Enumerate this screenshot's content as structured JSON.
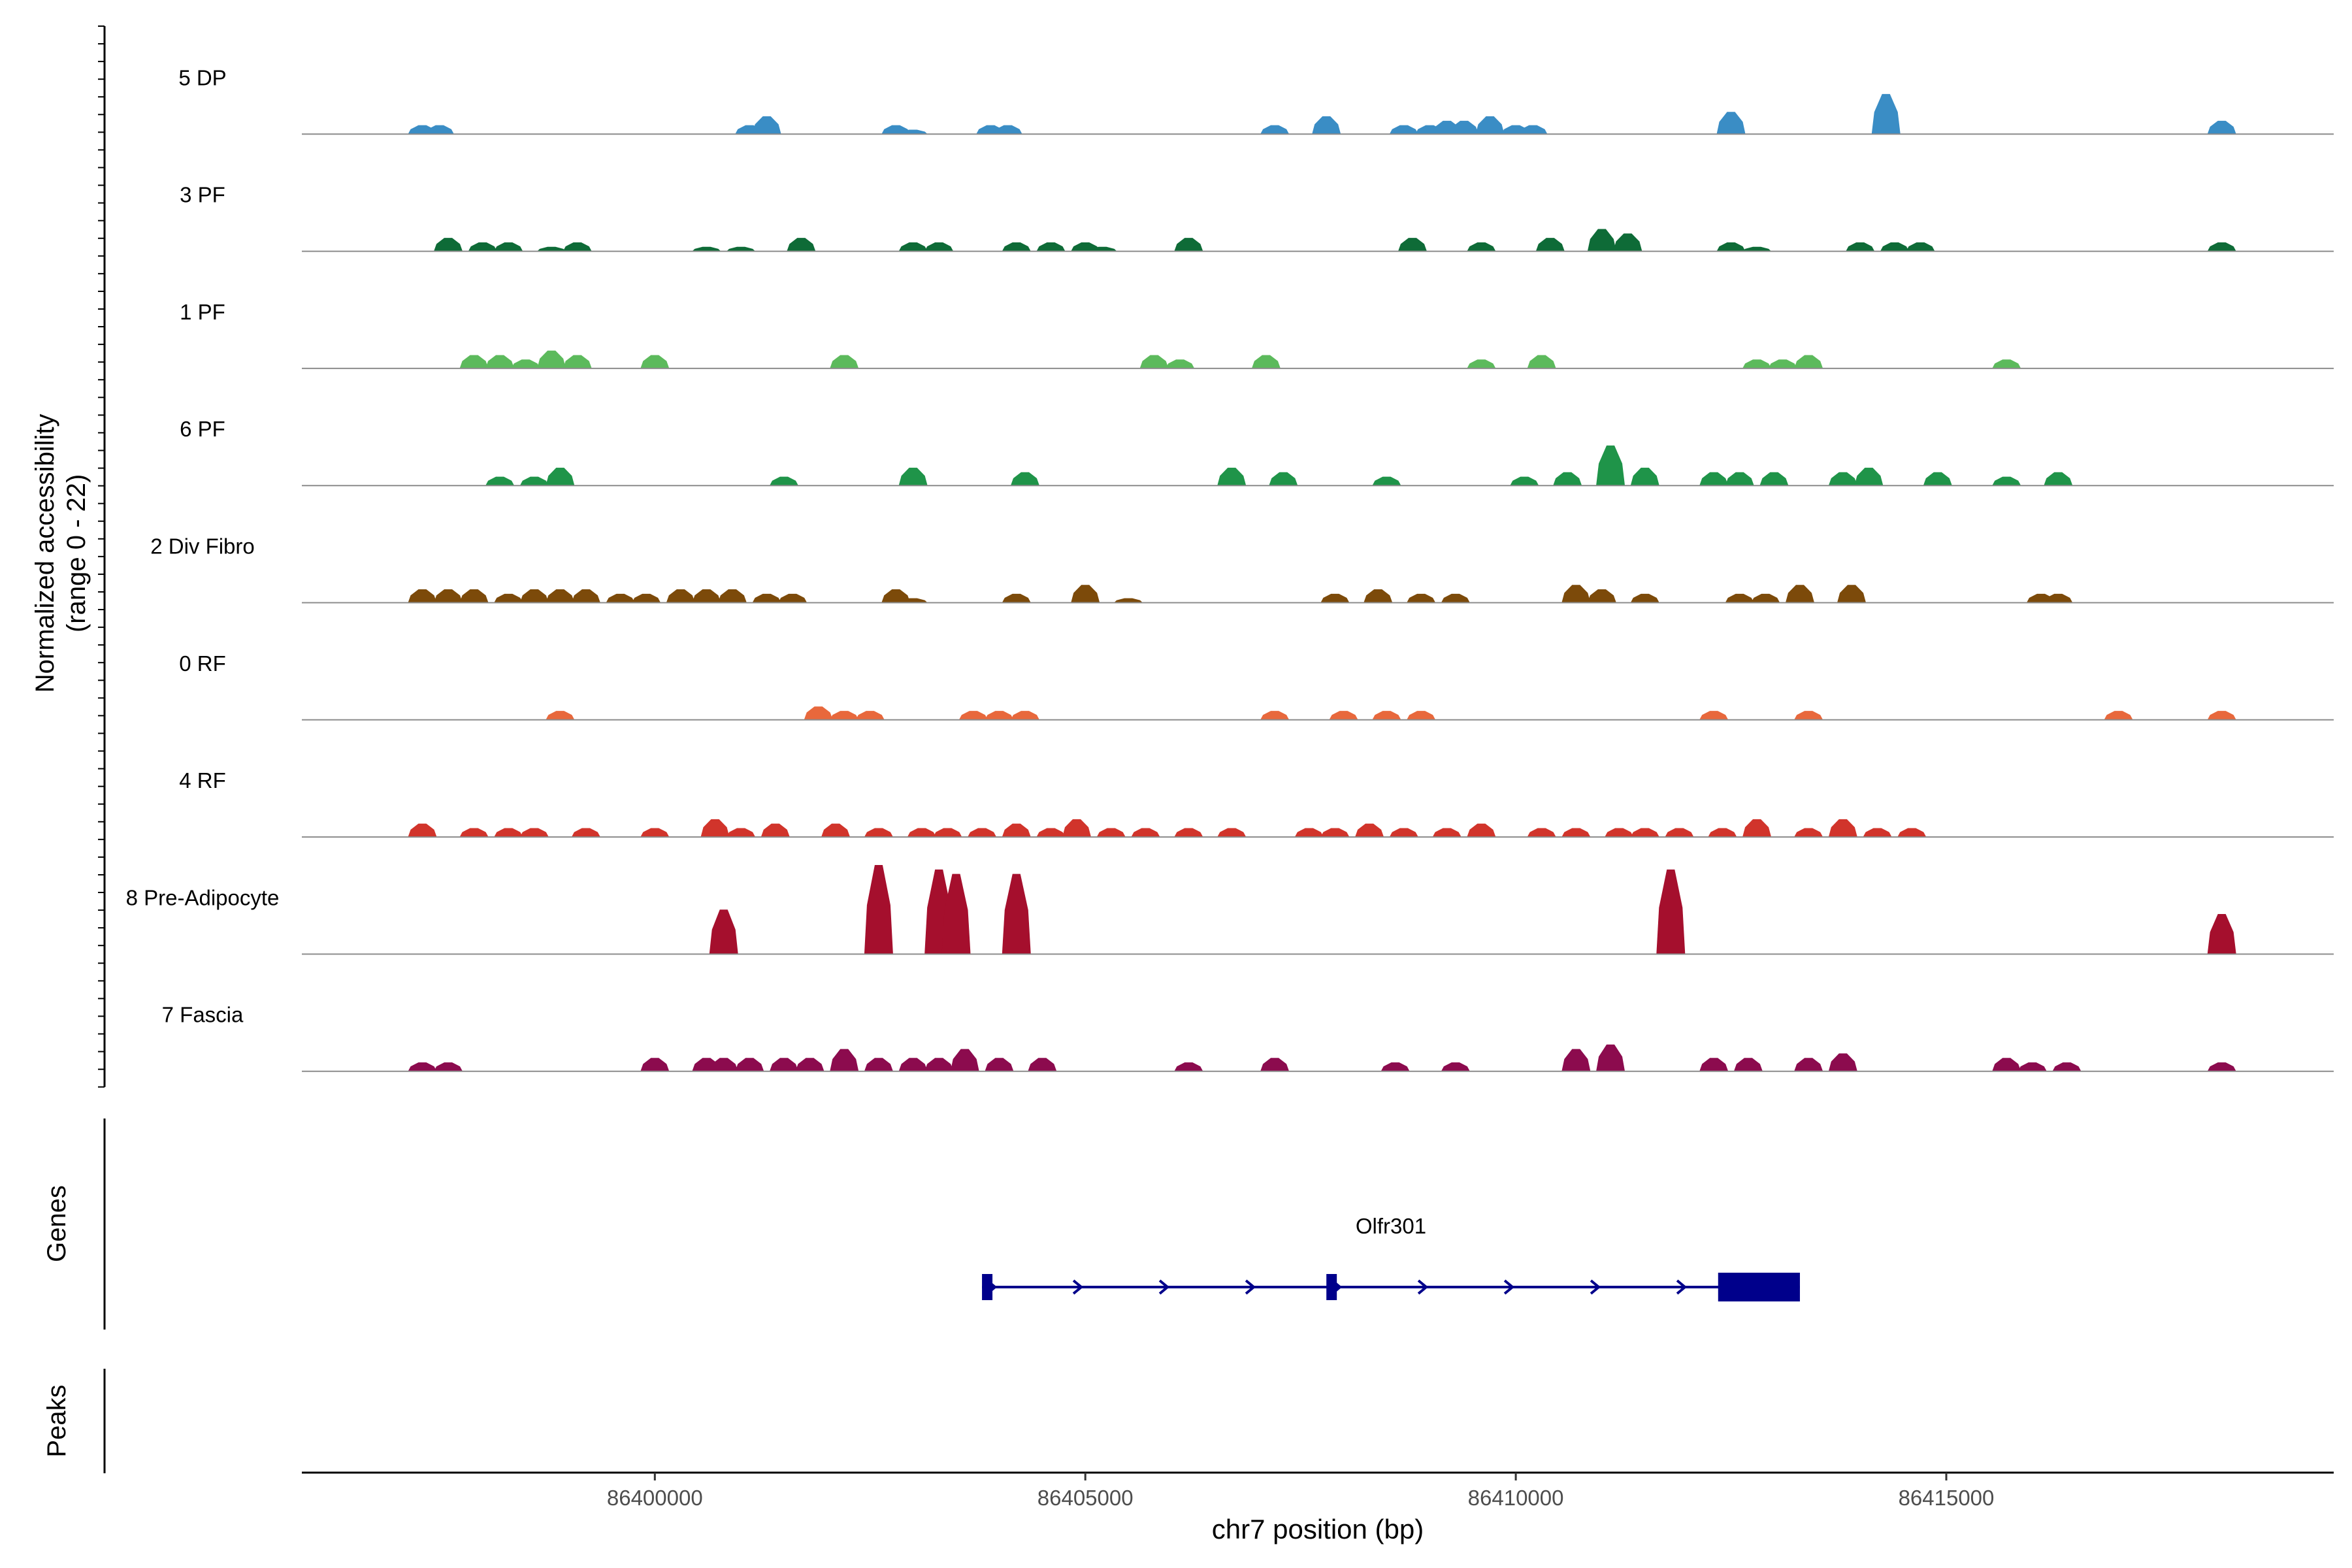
{
  "chart_data": {
    "type": "area",
    "title": "",
    "xlabel": "chr7 position (bp)",
    "ylabel_line1": "Normalized accessibility",
    "ylabel_line2": "(range 0 - 22)",
    "ylim": [
      0,
      22
    ],
    "xlim": [
      86395900,
      86419500
    ],
    "x_ticks": [
      86400000,
      86405000,
      86410000,
      86415000
    ],
    "x_tick_labels": [
      "86400000",
      "86405000",
      "86410000",
      "86415000"
    ],
    "series": [
      {
        "name": "5 DP",
        "color": "#3a8dc5",
        "peaks": [
          [
            86397300,
            2
          ],
          [
            86397500,
            2
          ],
          [
            86401100,
            2
          ],
          [
            86401300,
            4
          ],
          [
            86402800,
            2
          ],
          [
            86403000,
            1
          ],
          [
            86403900,
            2
          ],
          [
            86404100,
            2
          ],
          [
            86407200,
            2
          ],
          [
            86407800,
            4
          ],
          [
            86408700,
            2
          ],
          [
            86409000,
            2
          ],
          [
            86409200,
            3
          ],
          [
            86409400,
            3
          ],
          [
            86409700,
            4
          ],
          [
            86410000,
            2
          ],
          [
            86410200,
            2
          ],
          [
            86412500,
            5
          ],
          [
            86414300,
            9
          ],
          [
            86418200,
            3
          ]
        ]
      },
      {
        "name": "3 PF",
        "color": "#0e6b37",
        "peaks": [
          [
            86397600,
            3
          ],
          [
            86398000,
            2
          ],
          [
            86398300,
            2
          ],
          [
            86398800,
            1
          ],
          [
            86399100,
            2
          ],
          [
            86400600,
            1
          ],
          [
            86401000,
            1
          ],
          [
            86401700,
            3
          ],
          [
            86403000,
            2
          ],
          [
            86403300,
            2
          ],
          [
            86404200,
            2
          ],
          [
            86404600,
            2
          ],
          [
            86405000,
            2
          ],
          [
            86405200,
            1
          ],
          [
            86406200,
            3
          ],
          [
            86408800,
            3
          ],
          [
            86409600,
            2
          ],
          [
            86410400,
            3
          ],
          [
            86411000,
            5
          ],
          [
            86411300,
            4
          ],
          [
            86412500,
            2
          ],
          [
            86412800,
            1
          ],
          [
            86414000,
            2
          ],
          [
            86414400,
            2
          ],
          [
            86414700,
            2
          ],
          [
            86418200,
            2
          ]
        ]
      },
      {
        "name": "1 PF",
        "color": "#5cba5c",
        "peaks": [
          [
            86397900,
            3
          ],
          [
            86398200,
            3
          ],
          [
            86398500,
            2
          ],
          [
            86398800,
            4
          ],
          [
            86399100,
            3
          ],
          [
            86400000,
            3
          ],
          [
            86402200,
            3
          ],
          [
            86405800,
            3
          ],
          [
            86406100,
            2
          ],
          [
            86407100,
            3
          ],
          [
            86409600,
            2
          ],
          [
            86410300,
            3
          ],
          [
            86412800,
            2
          ],
          [
            86413100,
            2
          ],
          [
            86413400,
            3
          ],
          [
            86415700,
            2
          ]
        ]
      },
      {
        "name": "6 PF",
        "color": "#1f9449",
        "peaks": [
          [
            86398200,
            2
          ],
          [
            86398600,
            2
          ],
          [
            86398900,
            4
          ],
          [
            86401500,
            2
          ],
          [
            86403000,
            4
          ],
          [
            86404300,
            3
          ],
          [
            86406700,
            4
          ],
          [
            86407300,
            3
          ],
          [
            86408500,
            2
          ],
          [
            86410100,
            2
          ],
          [
            86410600,
            3
          ],
          [
            86411100,
            9
          ],
          [
            86411500,
            4
          ],
          [
            86412300,
            3
          ],
          [
            86412600,
            3
          ],
          [
            86413000,
            3
          ],
          [
            86413800,
            3
          ],
          [
            86414100,
            4
          ],
          [
            86414900,
            3
          ],
          [
            86415700,
            2
          ],
          [
            86416300,
            3
          ]
        ]
      },
      {
        "name": "2 Div Fibro",
        "color": "#7c4a0a",
        "peaks": [
          [
            86397300,
            3
          ],
          [
            86397600,
            3
          ],
          [
            86397900,
            3
          ],
          [
            86398300,
            2
          ],
          [
            86398600,
            3
          ],
          [
            86398900,
            3
          ],
          [
            86399200,
            3
          ],
          [
            86399600,
            2
          ],
          [
            86399900,
            2
          ],
          [
            86400300,
            3
          ],
          [
            86400600,
            3
          ],
          [
            86400900,
            3
          ],
          [
            86401300,
            2
          ],
          [
            86401600,
            2
          ],
          [
            86402800,
            3
          ],
          [
            86403000,
            1
          ],
          [
            86404200,
            2
          ],
          [
            86405000,
            4
          ],
          [
            86405500,
            1
          ],
          [
            86407900,
            2
          ],
          [
            86408400,
            3
          ],
          [
            86408900,
            2
          ],
          [
            86409300,
            2
          ],
          [
            86410700,
            4
          ],
          [
            86411000,
            3
          ],
          [
            86411500,
            2
          ],
          [
            86412600,
            2
          ],
          [
            86412900,
            2
          ],
          [
            86413300,
            4
          ],
          [
            86413900,
            4
          ],
          [
            86416100,
            2
          ],
          [
            86416300,
            2
          ]
        ]
      },
      {
        "name": "0 RF",
        "color": "#e8683c",
        "peaks": [
          [
            86398900,
            2
          ],
          [
            86401900,
            3
          ],
          [
            86402200,
            2
          ],
          [
            86402500,
            2
          ],
          [
            86403700,
            2
          ],
          [
            86404000,
            2
          ],
          [
            86404300,
            2
          ],
          [
            86407200,
            2
          ],
          [
            86408000,
            2
          ],
          [
            86408500,
            2
          ],
          [
            86408900,
            2
          ],
          [
            86412300,
            2
          ],
          [
            86413400,
            2
          ],
          [
            86417000,
            2
          ],
          [
            86418200,
            2
          ]
        ]
      },
      {
        "name": "4 RF",
        "color": "#d1342b",
        "peaks": [
          [
            86397300,
            3
          ],
          [
            86397900,
            2
          ],
          [
            86398300,
            2
          ],
          [
            86398600,
            2
          ],
          [
            86399200,
            2
          ],
          [
            86400000,
            2
          ],
          [
            86400700,
            4
          ],
          [
            86401000,
            2
          ],
          [
            86401400,
            3
          ],
          [
            86402100,
            3
          ],
          [
            86402600,
            2
          ],
          [
            86403100,
            2
          ],
          [
            86403400,
            2
          ],
          [
            86403800,
            2
          ],
          [
            86404200,
            3
          ],
          [
            86404600,
            2
          ],
          [
            86404900,
            4
          ],
          [
            86405300,
            2
          ],
          [
            86405700,
            2
          ],
          [
            86406200,
            2
          ],
          [
            86406700,
            2
          ],
          [
            86407600,
            2
          ],
          [
            86407900,
            2
          ],
          [
            86408300,
            3
          ],
          [
            86408700,
            2
          ],
          [
            86409200,
            2
          ],
          [
            86409600,
            3
          ],
          [
            86410300,
            2
          ],
          [
            86410700,
            2
          ],
          [
            86411200,
            2
          ],
          [
            86411500,
            2
          ],
          [
            86411900,
            2
          ],
          [
            86412400,
            2
          ],
          [
            86412800,
            4
          ],
          [
            86413400,
            2
          ],
          [
            86413800,
            4
          ],
          [
            86414200,
            2
          ],
          [
            86414600,
            2
          ]
        ]
      },
      {
        "name": "8 Pre-Adipocyte",
        "color": "#a50f2d",
        "peaks": [
          [
            86400800,
            10
          ],
          [
            86402600,
            20
          ],
          [
            86403300,
            19
          ],
          [
            86403500,
            18
          ],
          [
            86404200,
            18
          ],
          [
            86411800,
            19
          ],
          [
            86418200,
            9
          ]
        ]
      },
      {
        "name": "7 Fascia",
        "color": "#8c0b4e",
        "peaks": [
          [
            86397300,
            2
          ],
          [
            86397600,
            2
          ],
          [
            86400000,
            3
          ],
          [
            86400600,
            3
          ],
          [
            86400800,
            3
          ],
          [
            86401100,
            3
          ],
          [
            86401500,
            3
          ],
          [
            86401800,
            3
          ],
          [
            86402200,
            5
          ],
          [
            86402600,
            3
          ],
          [
            86403000,
            3
          ],
          [
            86403300,
            3
          ],
          [
            86403600,
            5
          ],
          [
            86404000,
            3
          ],
          [
            86404500,
            3
          ],
          [
            86406200,
            2
          ],
          [
            86407200,
            3
          ],
          [
            86408600,
            2
          ],
          [
            86409300,
            2
          ],
          [
            86410700,
            5
          ],
          [
            86411100,
            6
          ],
          [
            86412300,
            3
          ],
          [
            86412700,
            3
          ],
          [
            86413400,
            3
          ],
          [
            86413800,
            4
          ],
          [
            86415700,
            3
          ],
          [
            86416000,
            2
          ],
          [
            86416400,
            2
          ],
          [
            86418200,
            2
          ]
        ]
      }
    ],
    "tracks": {
      "genes_label": "Genes",
      "peaks_label": "Peaks",
      "gene": {
        "name": "Olfr301",
        "start": 86403800,
        "end": 86413300,
        "strand": "+",
        "color": "#00008b",
        "exons": [
          [
            86403800,
            86403920
          ],
          [
            86407800,
            86407920
          ],
          [
            86412350,
            86413300
          ]
        ]
      }
    }
  }
}
